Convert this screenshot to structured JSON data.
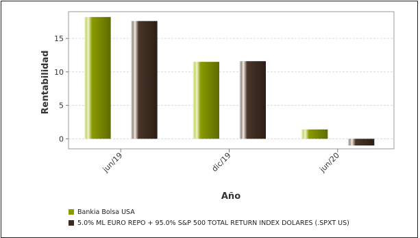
{
  "chart_data": {
    "type": "bar",
    "categories": [
      "jun/19",
      "dic/19",
      "jun/20"
    ],
    "series": [
      {
        "name": "Bankia Bolsa USA",
        "values": [
          18.2,
          11.5,
          1.4
        ],
        "color": "#8a9a00"
      },
      {
        "name": "5.0% ML EURO REPO + 95.0% S&P 500 TOTAL RETURN INDEX DOLARES (.SPXT US)",
        "values": [
          17.6,
          11.6,
          -1.0
        ],
        "color": "#3a2a20"
      }
    ],
    "xlabel": "Año",
    "ylabel": "Rentabilidad",
    "ylim": [
      -1.5,
      19
    ],
    "yticks": [
      0,
      5,
      10,
      15
    ],
    "grid": true,
    "legend_position": "bottom-left"
  }
}
